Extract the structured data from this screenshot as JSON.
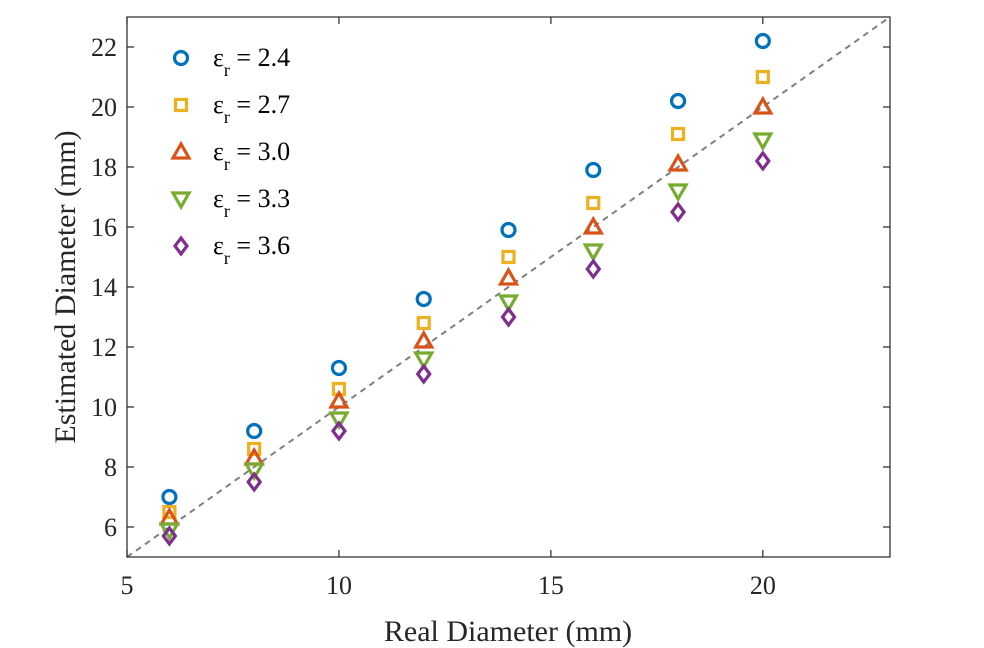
{
  "chart_data": {
    "type": "scatter",
    "title": "",
    "xlabel": "Real Diameter (mm)",
    "ylabel": "Estimated Diameter (mm)",
    "xlim": [
      5,
      23
    ],
    "ylim": [
      5,
      23
    ],
    "xticks": [
      5,
      10,
      15,
      20
    ],
    "yticks": [
      6,
      8,
      10,
      12,
      14,
      16,
      18,
      20,
      22
    ],
    "legend_position": "top-left",
    "reference_line": {
      "style": "dashed",
      "color": "#7f7f7f",
      "from": [
        5,
        5
      ],
      "to": [
        23,
        23
      ]
    },
    "x": [
      6,
      8,
      10,
      12,
      14,
      16,
      18,
      20
    ],
    "series": [
      {
        "name": "ε_r = 2.4",
        "symbol": "ε",
        "subscript": "r",
        "eq": " = 2.4",
        "marker": "circle",
        "color": "#0072BD",
        "values": [
          7.0,
          9.2,
          11.3,
          13.6,
          15.9,
          17.9,
          20.2,
          22.2
        ]
      },
      {
        "name": "ε_r = 2.7",
        "symbol": "ε",
        "subscript": "r",
        "eq": " = 2.7",
        "marker": "square",
        "color": "#EDB120",
        "values": [
          6.5,
          8.6,
          10.6,
          12.8,
          15.0,
          16.8,
          19.1,
          21.0
        ]
      },
      {
        "name": "ε_r = 3.0",
        "symbol": "ε",
        "subscript": "r",
        "eq": " = 3.0",
        "marker": "triangle-up",
        "color": "#D95319",
        "values": [
          6.3,
          8.3,
          10.2,
          12.2,
          14.3,
          16.0,
          18.1,
          20.0
        ]
      },
      {
        "name": "ε_r = 3.3",
        "symbol": "ε",
        "subscript": "r",
        "eq": " = 3.3",
        "marker": "triangle-down",
        "color": "#77AC30",
        "values": [
          5.9,
          7.9,
          9.6,
          11.6,
          13.5,
          15.2,
          17.2,
          18.9
        ]
      },
      {
        "name": "ε_r = 3.6",
        "symbol": "ε",
        "subscript": "r",
        "eq": " = 3.6",
        "marker": "diamond",
        "color": "#7E2F8E",
        "values": [
          5.7,
          7.5,
          9.2,
          11.1,
          13.0,
          14.6,
          16.5,
          18.2
        ]
      }
    ]
  }
}
